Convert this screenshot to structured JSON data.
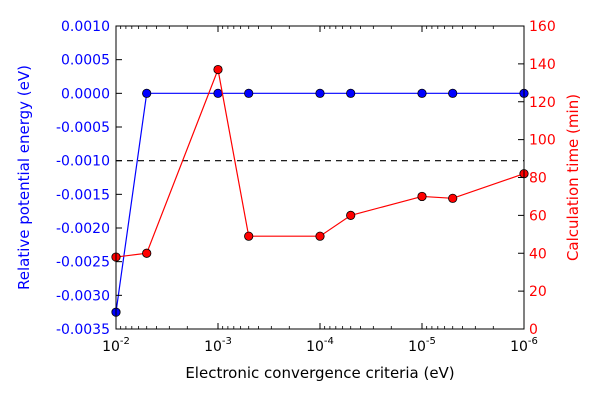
{
  "chart_data": {
    "type": "line",
    "xscale": "log",
    "xaxis_reversed": true,
    "xlabel": "Electronic convergence criteria (eV)",
    "xlim": [
      0.01,
      1e-06
    ],
    "xticks": [
      {
        "value": 0.01,
        "base": "10",
        "exp": "-2"
      },
      {
        "value": 0.001,
        "base": "10",
        "exp": "-3"
      },
      {
        "value": 0.0001,
        "base": "10",
        "exp": "-4"
      },
      {
        "value": 1e-05,
        "base": "10",
        "exp": "-5"
      },
      {
        "value": 1e-06,
        "base": "10",
        "exp": "-6"
      }
    ],
    "x": [
      0.01,
      0.005,
      0.001,
      0.0005,
      0.0001,
      5e-05,
      1e-05,
      5e-06,
      1e-06
    ],
    "left_axis": {
      "label": "Relative potential energy (eV)",
      "color": "#0000ff",
      "ylim": [
        -0.0035,
        0.001
      ],
      "ticks": [
        "0.0010",
        "0.0005",
        "0.0000",
        "-0.0005",
        "-0.0010",
        "-0.0015",
        "-0.0020",
        "-0.0025",
        "-0.0030",
        "-0.0035"
      ],
      "tick_values": [
        0.001,
        0.0005,
        0.0,
        -0.0005,
        -0.001,
        -0.0015,
        -0.002,
        -0.0025,
        -0.003,
        -0.0035
      ]
    },
    "right_axis": {
      "label": "Calculation time (min)",
      "color": "#ff0000",
      "ylim": [
        0,
        160
      ],
      "ticks": [
        "160",
        "140",
        "120",
        "100",
        "80",
        "60",
        "40",
        "20",
        "0"
      ],
      "tick_values": [
        160,
        140,
        120,
        100,
        80,
        60,
        40,
        20,
        0
      ]
    },
    "series": [
      {
        "axis": "left",
        "color": "#0000ff",
        "values": [
          -0.00325,
          0.0,
          0.0,
          0.0,
          0.0,
          0.0,
          0.0,
          0.0,
          0.0
        ]
      },
      {
        "axis": "right",
        "color": "#ff0000",
        "values": [
          38,
          40,
          137,
          49,
          49,
          60,
          70,
          69,
          82
        ]
      }
    ],
    "reference_line": {
      "axis": "left",
      "value": -0.001,
      "style": "dashed",
      "color": "#000000"
    },
    "grid": false,
    "legend": "none"
  }
}
